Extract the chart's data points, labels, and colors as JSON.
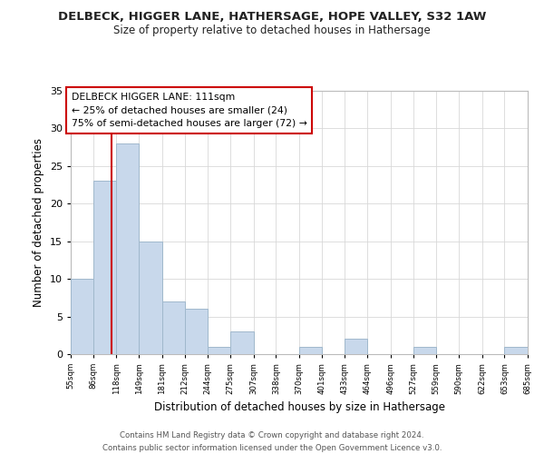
{
  "title": "DELBECK, HIGGER LANE, HATHERSAGE, HOPE VALLEY, S32 1AW",
  "subtitle": "Size of property relative to detached houses in Hathersage",
  "xlabel": "Distribution of detached houses by size in Hathersage",
  "ylabel": "Number of detached properties",
  "bar_color": "#c8d8eb",
  "bar_edge_color": "#a0b8cc",
  "bins": [
    55,
    86,
    118,
    149,
    181,
    212,
    244,
    275,
    307,
    338,
    370,
    401,
    433,
    464,
    496,
    527,
    559,
    590,
    622,
    653,
    685
  ],
  "counts": [
    10,
    23,
    28,
    15,
    7,
    6,
    1,
    3,
    0,
    0,
    1,
    0,
    2,
    0,
    0,
    1,
    0,
    0,
    0,
    1
  ],
  "tick_labels": [
    "55sqm",
    "86sqm",
    "118sqm",
    "149sqm",
    "181sqm",
    "212sqm",
    "244sqm",
    "275sqm",
    "307sqm",
    "338sqm",
    "370sqm",
    "401sqm",
    "433sqm",
    "464sqm",
    "496sqm",
    "527sqm",
    "559sqm",
    "590sqm",
    "622sqm",
    "653sqm",
    "685sqm"
  ],
  "ylim": [
    0,
    35
  ],
  "yticks": [
    0,
    5,
    10,
    15,
    20,
    25,
    30,
    35
  ],
  "vline_x": 111,
  "vline_color": "#cc0000",
  "annotation_title": "DELBECK HIGGER LANE: 111sqm",
  "annotation_line1": "← 25% of detached houses are smaller (24)",
  "annotation_line2": "75% of semi-detached houses are larger (72) →",
  "footer_line1": "Contains HM Land Registry data © Crown copyright and database right 2024.",
  "footer_line2": "Contains public sector information licensed under the Open Government Licence v3.0.",
  "background_color": "#ffffff",
  "grid_color": "#d8d8d8"
}
